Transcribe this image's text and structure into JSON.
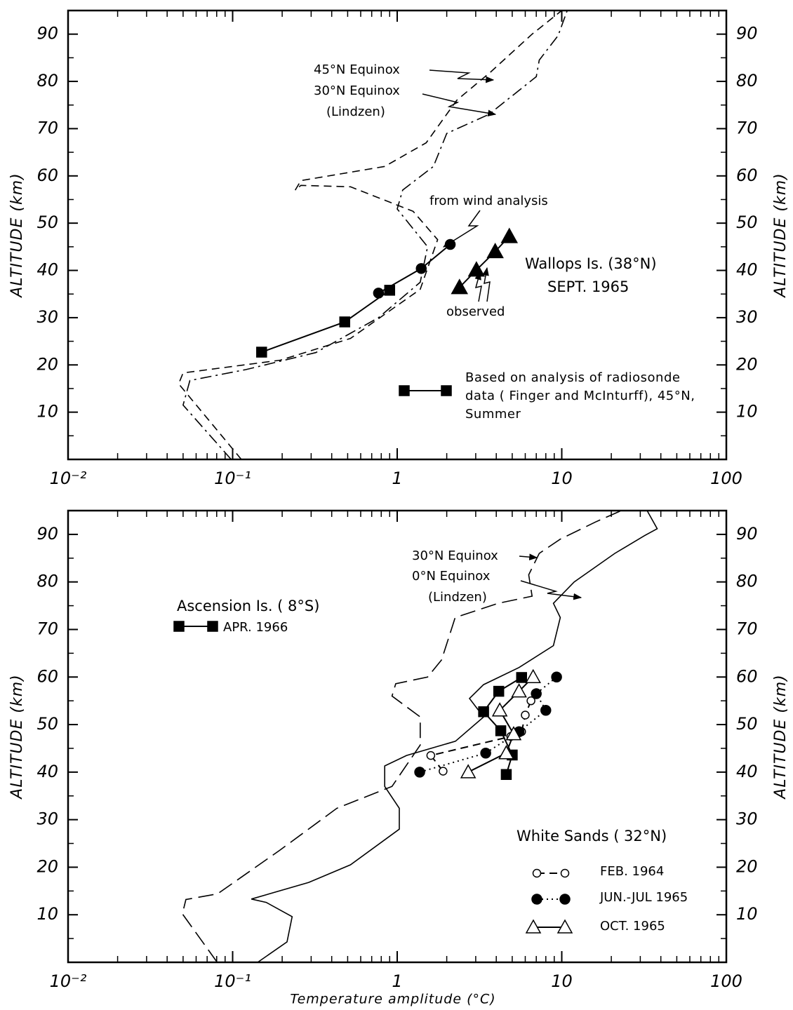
{
  "chart_data": [
    {
      "type": "line",
      "xscale": "log",
      "xlim": [
        0.01,
        100
      ],
      "ylim": [
        0,
        95
      ],
      "xticks": [
        {
          "value": 0.01,
          "label": "10⁻²"
        },
        {
          "value": 0.1,
          "label": "10⁻¹"
        },
        1,
        10,
        100
      ],
      "yticks": [
        10,
        20,
        30,
        40,
        50,
        60,
        70,
        80,
        90
      ],
      "ylabel": "ALTITUDE (km)",
      "grid": false,
      "series": [
        {
          "name": "45°N Equinox",
          "color": "#000000",
          "dash": "dashed",
          "marker": null,
          "x": [
            0.113,
            0.047,
            0.05,
            0.195,
            0.52,
            1.38,
            1.76,
            1.25,
            0.52,
            0.26,
            0.24,
            0.26,
            0.84,
            1.5,
            2.3,
            3.7,
            6.6,
            10
          ],
          "values": [
            0,
            16,
            18.3,
            21,
            25.6,
            36,
            46.5,
            52.5,
            57.7,
            58,
            57,
            59,
            62,
            67,
            76,
            82,
            90,
            95
          ]
        },
        {
          "name": "30°N Equinox",
          "color": "#000000",
          "dash": "dashdot",
          "marker": null,
          "x": [
            0.098,
            0.05,
            0.055,
            0.12,
            0.32,
            0.77,
            1.38,
            1.53,
            1.0,
            1.08,
            1.66,
            2.0,
            3.6,
            7.0,
            7.3,
            9.5,
            10.8
          ],
          "values": [
            0,
            11.5,
            16.7,
            19,
            22.6,
            30,
            37.5,
            45,
            53,
            57,
            62,
            69,
            73,
            81,
            84.5,
            89.7,
            95
          ]
        },
        {
          "name": "from wind analysis",
          "color": "#000000",
          "dash": "solid",
          "marker": "circle",
          "x": [
            0.77,
            1.4,
            2.1
          ],
          "values": [
            35.2,
            40.4,
            45.5
          ]
        },
        {
          "name": "Based on analysis of radiosonde data ( Finger and McInturff), 45°N, Summer",
          "color": "#000000",
          "dash": "solid",
          "marker": "square",
          "x": [
            0.15,
            0.48,
            0.9
          ],
          "values": [
            22.7,
            29.1,
            35.8
          ]
        },
        {
          "name": "observed",
          "color": "#000000",
          "dash": "solid",
          "marker": "triangle",
          "x": [
            2.39,
            3.03,
            3.94,
            4.8
          ],
          "values": [
            36.4,
            40.1,
            44,
            47.2
          ]
        }
      ],
      "annotations": [
        "(Lindzen)",
        "Wallops Is. (38°N)",
        "SEPT. 1965"
      ]
    },
    {
      "type": "line",
      "xscale": "log",
      "xlim": [
        0.01,
        100
      ],
      "ylim": [
        0,
        95
      ],
      "xticks": [
        {
          "value": 0.01,
          "label": "10⁻²"
        },
        {
          "value": 0.1,
          "label": "10⁻¹"
        },
        1,
        10,
        100
      ],
      "yticks": [
        10,
        20,
        30,
        40,
        50,
        60,
        70,
        80,
        90
      ],
      "ylabel": "ALTITUDE (km)",
      "xlabel": "Temperature amplitude (°C)",
      "grid": false,
      "series": [
        {
          "name": "30°N Equinox",
          "color": "#000000",
          "dash": "longdash",
          "marker": null,
          "x": [
            0.0806,
            0.0495,
            0.052,
            0.081,
            0.194,
            0.43,
            0.93,
            1.38,
            1.38,
            0.93,
            0.98,
            1.53,
            1.86,
            2.25,
            4.1,
            6.6,
            6.3,
            7.3,
            9.8,
            16,
            23
          ],
          "values": [
            0,
            10.2,
            13.2,
            14.4,
            23.6,
            32.4,
            37,
            45.7,
            51.6,
            56,
            58.6,
            60,
            63.6,
            72.5,
            75.5,
            77,
            81.5,
            86,
            89,
            92.6,
            95
          ]
        },
        {
          "name": "0°N Equinox",
          "color": "#000000",
          "dash": "solid",
          "marker": null,
          "x": [
            0.142,
            0.214,
            0.23,
            0.16,
            0.13,
            0.29,
            0.52,
            1.03,
            1.03,
            0.84,
            0.84,
            1.14,
            2.26,
            3.35,
            2.75,
            3.35,
            5.5,
            8.9,
            9.8,
            8.9,
            11.9,
            21,
            31.7,
            38,
            33
          ],
          "values": [
            0,
            4.3,
            9.6,
            12.6,
            13.3,
            16.8,
            20.5,
            28,
            32.4,
            37,
            41.3,
            43.5,
            46.5,
            51.6,
            55.5,
            58.4,
            62,
            66.6,
            72.5,
            75.5,
            80,
            86,
            89.7,
            91.2,
            95
          ]
        },
        {
          "name": "APR. 1966",
          "color": "#000000",
          "dash": "solid",
          "marker": "square",
          "x": [
            4.6,
            5.0,
            4.26,
            3.35,
            4.14,
            5.7
          ],
          "values": [
            39.5,
            43.6,
            48.7,
            52.7,
            57,
            59.9
          ]
        },
        {
          "name": "FEB. 1964",
          "color": "#000000",
          "dash": "dashed",
          "marker": "open-circle",
          "x": [
            1.9,
            1.6,
            4.9,
            5.7,
            6.0,
            6.5
          ],
          "values": [
            40.2,
            43.5,
            47.5,
            48.5,
            52,
            55
          ]
        },
        {
          "name": "JUN.-JUL 1965",
          "color": "#000000",
          "dash": "dotted",
          "marker": "circle",
          "x": [
            1.37,
            3.45,
            5.5,
            8.0,
            7.0,
            9.3
          ],
          "values": [
            40,
            44,
            48.5,
            53,
            56.5,
            60
          ]
        },
        {
          "name": "OCT. 1965",
          "color": "#000000",
          "dash": "solid",
          "marker": "open-triangle",
          "x": [
            2.7,
            4.6,
            5.1,
            4.2,
            5.5,
            6.7
          ],
          "values": [
            40,
            44,
            48,
            53,
            57,
            60
          ]
        }
      ],
      "annotations": [
        "(Lindzen)",
        "Ascension Is. ( 8°S)",
        "White Sands ( 32°N)"
      ]
    }
  ]
}
